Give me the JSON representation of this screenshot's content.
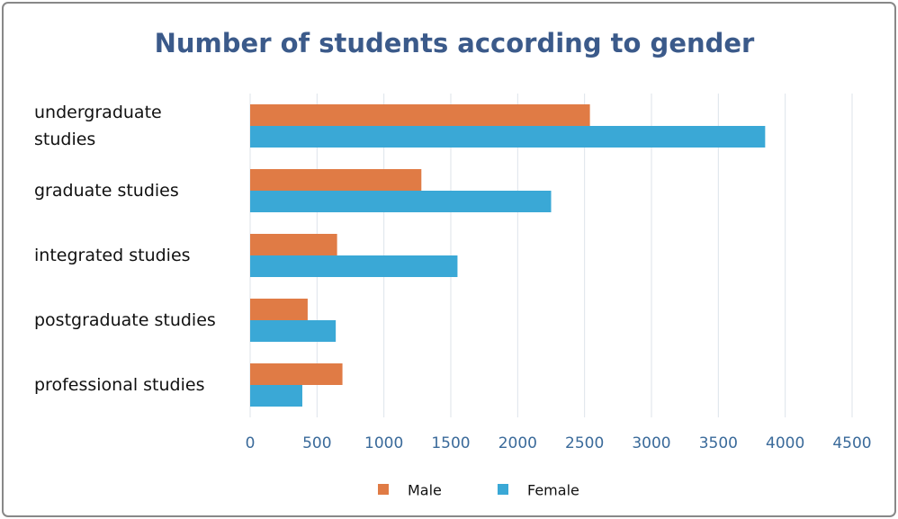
{
  "chart_data": {
    "type": "bar",
    "orientation": "horizontal",
    "title": "Number of students according to gender",
    "categories": [
      "undergraduate studies",
      "graduate studies",
      "integrated studies",
      "postgraduate studies",
      "professional studies"
    ],
    "series": [
      {
        "name": "Male",
        "color": "#e07b45",
        "values": [
          2540,
          1280,
          650,
          430,
          690
        ]
      },
      {
        "name": "Female",
        "color": "#3aa8d6",
        "values": [
          3850,
          2250,
          1550,
          640,
          390
        ]
      }
    ],
    "xlim": [
      0,
      4500
    ],
    "xticks": [
      0,
      500,
      1000,
      1500,
      2000,
      2500,
      3000,
      3500,
      4000,
      4500
    ],
    "grid": true,
    "legend": "bottom"
  }
}
